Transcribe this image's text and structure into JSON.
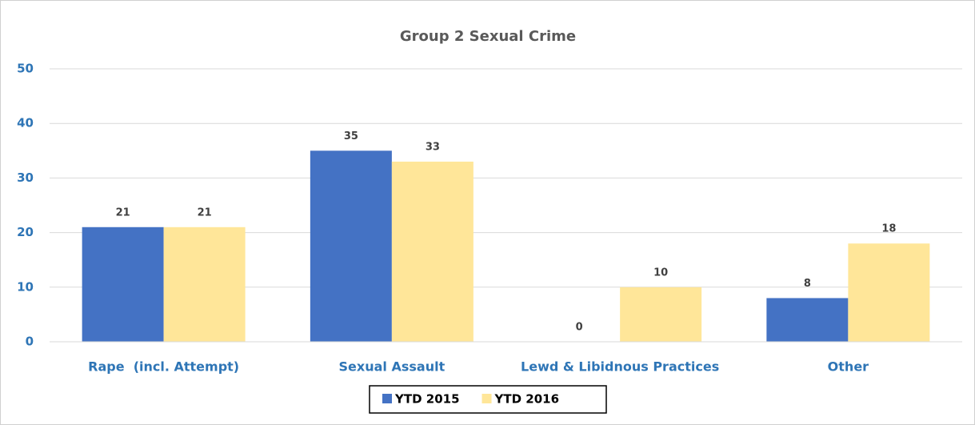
{
  "chart_data": {
    "type": "bar",
    "title": "Group 2 Sexual Crime",
    "categories": [
      "Rape  (incl. Attempt)",
      "Sexual Assault",
      "Lewd & Libidnous Practices",
      "Other"
    ],
    "series": [
      {
        "name": "YTD 2015",
        "color": "#4472c4",
        "values": [
          21,
          35,
          0,
          8
        ]
      },
      {
        "name": "YTD 2016",
        "color": "#ffe699",
        "values": [
          21,
          33,
          10,
          18
        ]
      }
    ],
    "ylim": [
      0,
      50
    ],
    "yticks": [
      0,
      10,
      20,
      30,
      40,
      50
    ],
    "grid": true,
    "legend": "bottom"
  }
}
